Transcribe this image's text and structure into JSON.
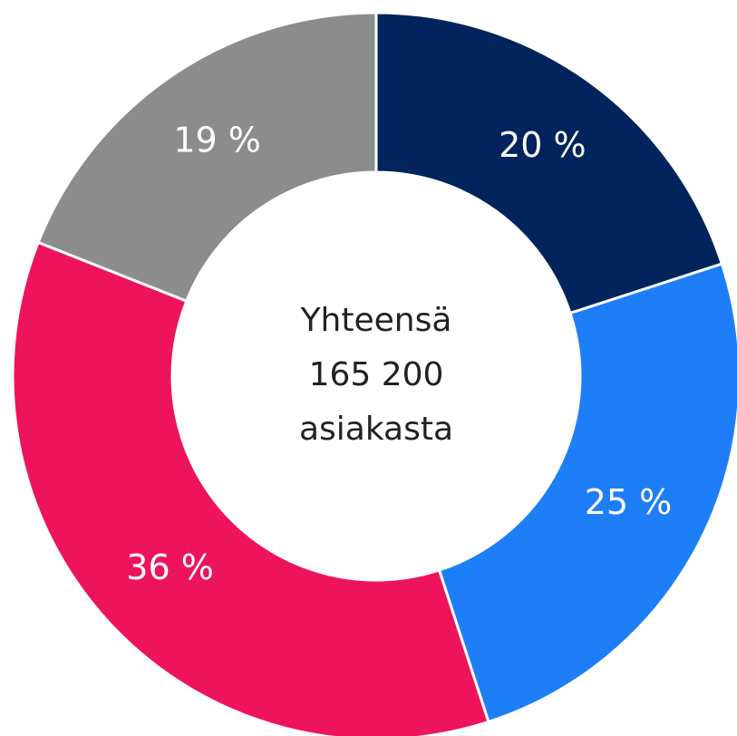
{
  "chart_data": {
    "type": "pie",
    "categories": [
      null,
      null,
      null,
      null
    ],
    "values": [
      20,
      25,
      36,
      19
    ],
    "value_labels": [
      "20 %",
      "25 %",
      "36 %",
      "19 %"
    ],
    "colors": [
      "#00245b",
      "#1e7ef7",
      "#ee145b",
      "#8c8c8c"
    ],
    "center_text": [
      "Yhteensä",
      "165 200",
      "asiakasta"
    ]
  }
}
